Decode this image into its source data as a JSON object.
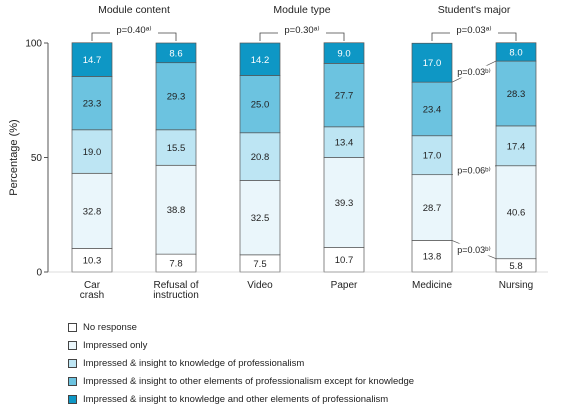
{
  "chart_data": {
    "type": "bar",
    "stacked": true,
    "ylabel": "Percentage (%)",
    "ylim": [
      0,
      100
    ],
    "yticks": [
      "0",
      "50",
      "100"
    ],
    "panels": [
      {
        "title": "Module content",
        "bars": [
          {
            "label": [
              "Car",
              "crash"
            ],
            "values": [
              10.3,
              32.8,
              19.0,
              23.3,
              14.7
            ],
            "labels": [
              "10.3",
              "32.8",
              "19.0",
              "23.3",
              "14.7"
            ]
          },
          {
            "label": [
              "Refusal of",
              "instruction"
            ],
            "values": [
              7.8,
              38.8,
              15.5,
              29.3,
              8.6
            ],
            "labels": [
              "7.8",
              "38.8",
              "15.5",
              "29.3",
              "8.6"
            ]
          }
        ],
        "pvalue": "p=0.40ᵃ⁾"
      },
      {
        "title": "Module type",
        "bars": [
          {
            "label": [
              "Video"
            ],
            "values": [
              7.5,
              32.5,
              20.8,
              25.0,
              14.2
            ],
            "labels": [
              "7.5",
              "32.5",
              "20.8",
              "25.0",
              "14.2"
            ]
          },
          {
            "label": [
              "Paper"
            ],
            "values": [
              10.7,
              39.3,
              13.4,
              27.7,
              9.0
            ],
            "labels": [
              "10.7",
              "39.3",
              "13.4",
              "27.7",
              "9.0"
            ]
          }
        ],
        "pvalue": "p=0.30ᵃ⁾"
      },
      {
        "title": "Student's major",
        "bars": [
          {
            "label": [
              "Medicine"
            ],
            "values": [
              13.8,
              28.7,
              17.0,
              23.4,
              17.0
            ],
            "labels": [
              "13.8",
              "28.7",
              "17.0",
              "23.4",
              "17.0"
            ]
          },
          {
            "label": [
              "Nursing"
            ],
            "values": [
              5.8,
              40.6,
              17.4,
              28.3,
              8.0
            ],
            "labels": [
              "5.8",
              "40.6",
              "17.4",
              "28.3",
              "8.0"
            ]
          }
        ],
        "pvalue": "p=0.03ᵃ⁾",
        "segment_pvalues": [
          "p=0.03ᵇ⁾",
          "p=0.06ᵇ⁾",
          "p=0.03ᵇ⁾"
        ]
      }
    ],
    "categories": [
      {
        "name": "No response",
        "color": "#ffffff"
      },
      {
        "name": "Impressed only",
        "color": "#eaf6fb"
      },
      {
        "name": "Impressed & insight to knowledge of professionalism",
        "color": "#bde5f3"
      },
      {
        "name": "Impressed & insight to other elements of professionalism except for knowledge",
        "color": "#6cc3e0"
      },
      {
        "name": "Impressed & insight to knowledge and other elements of professionalism",
        "color": "#0e97c5"
      }
    ]
  }
}
